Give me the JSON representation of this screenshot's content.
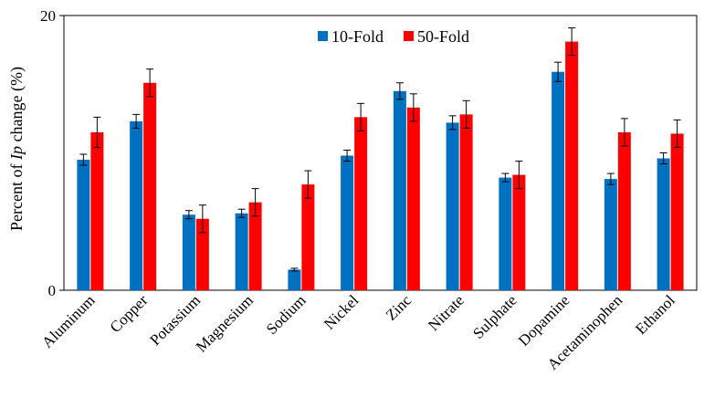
{
  "chart_data": {
    "type": "bar",
    "ylabel_prefix": "Percent of ",
    "ylabel_italic": "Ip",
    "ylabel_suffix": " change (%)",
    "ylim": [
      0,
      20
    ],
    "yticks": [
      "0",
      "20"
    ],
    "grid": false,
    "legend_position": "top-center",
    "categories": [
      "Aluminum",
      "Copper",
      "Potassium",
      "Magnesium",
      "Sodium",
      "Nickel",
      "Zinc",
      "Nitrate",
      "Sulphate",
      "Dopamine",
      "Acetaminophen",
      "Ethanol"
    ],
    "series": [
      {
        "name": "10-Fold",
        "color": "#0070C0",
        "values": [
          9.5,
          12.3,
          5.5,
          5.6,
          1.5,
          9.8,
          14.5,
          12.2,
          8.2,
          15.9,
          8.1,
          9.6
        ],
        "errors": [
          0.4,
          0.5,
          0.3,
          0.3,
          0.1,
          0.4,
          0.6,
          0.5,
          0.3,
          0.7,
          0.4,
          0.4
        ]
      },
      {
        "name": "50-Fold",
        "color": "#FF0000",
        "values": [
          11.5,
          15.1,
          5.2,
          6.4,
          7.7,
          12.6,
          13.3,
          12.8,
          8.4,
          18.1,
          11.5,
          11.4
        ],
        "errors": [
          1.1,
          1.0,
          1.0,
          1.0,
          1.0,
          1.0,
          1.0,
          1.0,
          1.0,
          1.0,
          1.0,
          1.0
        ]
      }
    ]
  }
}
